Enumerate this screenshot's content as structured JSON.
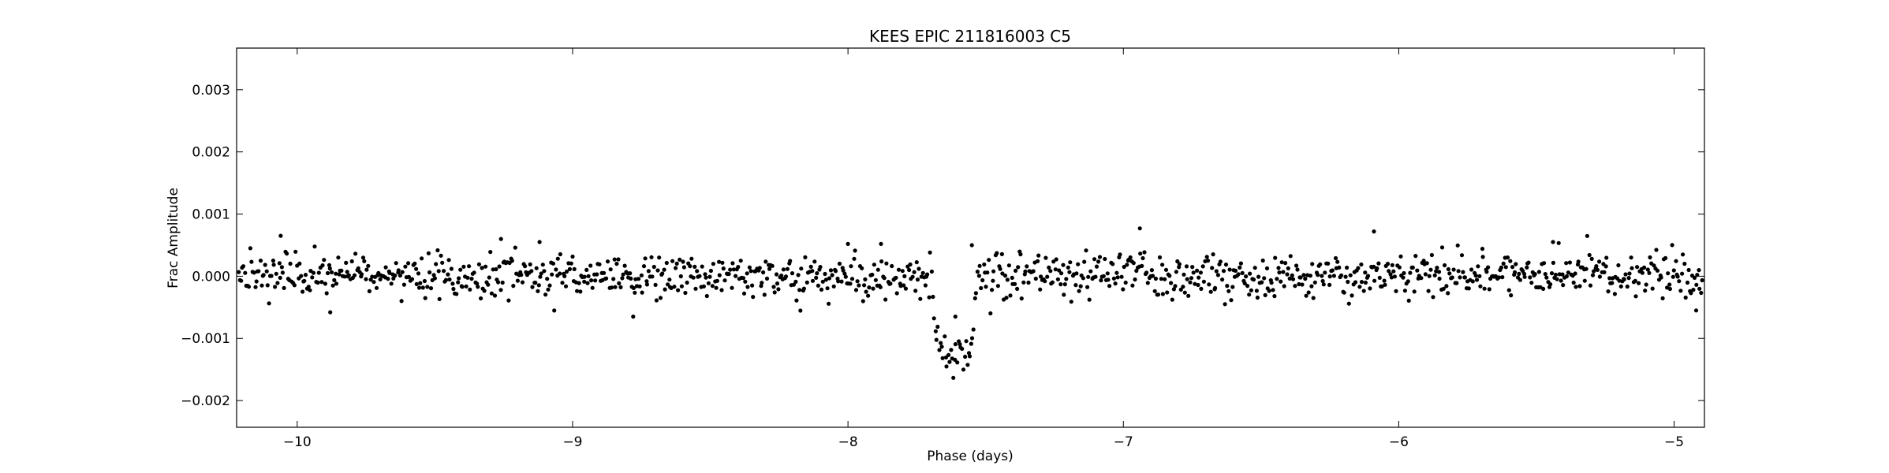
{
  "chart_data": {
    "type": "scatter",
    "title": "KEES EPIC 211816003 C5",
    "xlabel": "Phase (days)",
    "ylabel": "Frac Amplitude",
    "xlim": [
      -10.22,
      -4.89
    ],
    "ylim": [
      -0.00243,
      0.00367
    ],
    "x_ticks": [
      -10,
      -9,
      -8,
      -7,
      -6,
      -5
    ],
    "x_tick_labels": [
      "−10",
      "−9",
      "−8",
      "−7",
      "−6",
      "−5"
    ],
    "y_ticks": [
      -0.002,
      -0.001,
      0.0,
      0.001,
      0.002,
      0.003
    ],
    "y_tick_labels": [
      "−0.002",
      "−0.001",
      "0.000",
      "0.001",
      "0.002",
      "0.003"
    ],
    "grid": false,
    "marker_color": "#000000",
    "transit": {
      "center": -7.62,
      "depth": -0.00122,
      "ingress_start": -7.7,
      "egress_end": -7.53
    },
    "noise_sigma": 0.00017,
    "notable_points": [
      {
        "x": -10.06,
        "y": 0.00065
      },
      {
        "x": -9.26,
        "y": 0.0006
      },
      {
        "x": -9.12,
        "y": 0.00055
      },
      {
        "x": -9.88,
        "y": -0.00058
      },
      {
        "x": -8.78,
        "y": -0.00065
      },
      {
        "x": -6.94,
        "y": 0.00077
      },
      {
        "x": -6.09,
        "y": 0.00072
      },
      {
        "x": -7.55,
        "y": 0.0005
      },
      {
        "x": -5.44,
        "y": 0.00055
      },
      {
        "x": -4.92,
        "y": -0.00055
      },
      {
        "x": -7.61,
        "y": -0.00065
      },
      {
        "x": -8.0,
        "y": 0.00052
      },
      {
        "x": -7.88,
        "y": 0.00052
      }
    ]
  }
}
